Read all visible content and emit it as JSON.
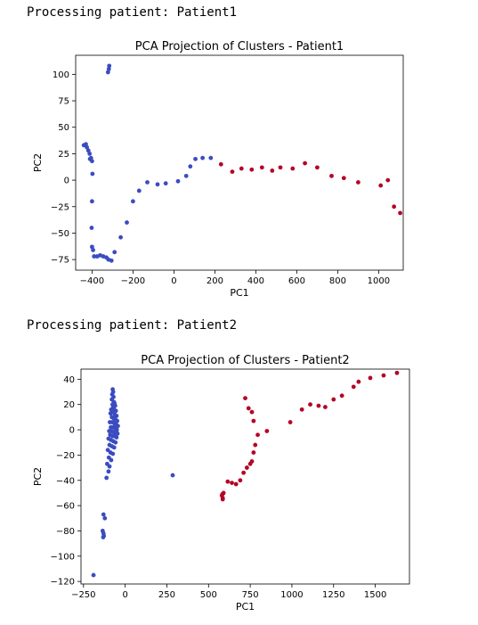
{
  "output": {
    "line1": "Processing patient: Patient1",
    "line2": "Processing patient: Patient2"
  },
  "colors": {
    "cluster0": "#3b4cc0",
    "cluster1": "#b40426"
  },
  "chart_data": [
    {
      "type": "scatter",
      "title": "PCA Projection of Clusters - Patient1",
      "xlabel": "PC1",
      "ylabel": "PC2",
      "xlim": [
        -480,
        1120
      ],
      "ylim": [
        -85,
        118
      ],
      "xticks": [
        -400,
        -200,
        0,
        200,
        400,
        600,
        800,
        1000
      ],
      "yticks": [
        100,
        75,
        50,
        25,
        0,
        -25,
        -50,
        -75
      ],
      "grid": false,
      "series": [
        {
          "cluster": 0,
          "points": [
            [
              -316,
              108
            ],
            [
              -318,
              105
            ],
            [
              -322,
              102
            ],
            [
              -440,
              33
            ],
            [
              -430,
              34
            ],
            [
              -425,
              31
            ],
            [
              -418,
              28
            ],
            [
              -412,
              25
            ],
            [
              -410,
              20
            ],
            [
              -405,
              21
            ],
            [
              -400,
              18
            ],
            [
              -398,
              6
            ],
            [
              -400,
              -20
            ],
            [
              -402,
              -45
            ],
            [
              -400,
              -63
            ],
            [
              -395,
              -66
            ],
            [
              -390,
              -72
            ],
            [
              -375,
              -72
            ],
            [
              -360,
              -71
            ],
            [
              -345,
              -72
            ],
            [
              -330,
              -73
            ],
            [
              -320,
              -75
            ],
            [
              -305,
              -76
            ],
            [
              -290,
              -68
            ],
            [
              -260,
              -54
            ],
            [
              -230,
              -40
            ],
            [
              -200,
              -20
            ],
            [
              -170,
              -10
            ],
            [
              -130,
              -2
            ],
            [
              -80,
              -4
            ],
            [
              -40,
              -3
            ],
            [
              20,
              -1
            ],
            [
              60,
              4
            ],
            [
              80,
              13
            ],
            [
              105,
              20
            ],
            [
              140,
              21
            ],
            [
              180,
              21
            ]
          ]
        },
        {
          "cluster": 1,
          "points": [
            [
              230,
              15
            ],
            [
              285,
              8
            ],
            [
              330,
              11
            ],
            [
              380,
              10
            ],
            [
              430,
              12
            ],
            [
              480,
              9
            ],
            [
              520,
              12
            ],
            [
              580,
              11
            ],
            [
              640,
              16
            ],
            [
              700,
              12
            ],
            [
              770,
              4
            ],
            [
              830,
              2
            ],
            [
              900,
              -2
            ],
            [
              1010,
              -5
            ],
            [
              1045,
              0
            ],
            [
              1075,
              -25
            ],
            [
              1105,
              -31
            ]
          ]
        }
      ]
    },
    {
      "type": "scatter",
      "title": "PCA Projection of Clusters - Patient2",
      "xlabel": "PC1",
      "ylabel": "PC2",
      "xlim": [
        -265,
        1705
      ],
      "ylim": [
        -122,
        48
      ],
      "xticks": [
        -250,
        0,
        250,
        500,
        750,
        1000,
        1250,
        1500
      ],
      "yticks": [
        40,
        20,
        0,
        -20,
        -40,
        -60,
        -80,
        -100,
        -120
      ],
      "grid": false,
      "series": [
        {
          "cluster": 0,
          "points": [
            [
              -75,
              32
            ],
            [
              -72,
              30
            ],
            [
              -78,
              28
            ],
            [
              -70,
              26
            ],
            [
              -80,
              24
            ],
            [
              -68,
              22
            ],
            [
              -76,
              20
            ],
            [
              -64,
              21
            ],
            [
              -72,
              18
            ],
            [
              -60,
              19
            ],
            [
              -84,
              16
            ],
            [
              -66,
              16
            ],
            [
              -56,
              15
            ],
            [
              -88,
              13
            ],
            [
              -74,
              14
            ],
            [
              -62,
              12
            ],
            [
              -52,
              11
            ],
            [
              -80,
              10
            ],
            [
              -68,
              9
            ],
            [
              -58,
              8
            ],
            [
              -48,
              7
            ],
            [
              -92,
              6
            ],
            [
              -78,
              6
            ],
            [
              -64,
              5
            ],
            [
              -54,
              4
            ],
            [
              -44,
              3
            ],
            [
              -86,
              2
            ],
            [
              -72,
              2
            ],
            [
              -60,
              1
            ],
            [
              -50,
              0
            ],
            [
              -96,
              -1
            ],
            [
              -82,
              -1
            ],
            [
              -68,
              -2
            ],
            [
              -56,
              -2
            ],
            [
              -46,
              -3
            ],
            [
              -90,
              -4
            ],
            [
              -76,
              -5
            ],
            [
              -64,
              -5
            ],
            [
              -52,
              -6
            ],
            [
              -100,
              -7
            ],
            [
              -86,
              -8
            ],
            [
              -72,
              -9
            ],
            [
              -58,
              -10
            ],
            [
              -94,
              -12
            ],
            [
              -80,
              -13
            ],
            [
              -66,
              -14
            ],
            [
              -104,
              -16
            ],
            [
              -88,
              -18
            ],
            [
              -74,
              -19
            ],
            [
              -98,
              -22
            ],
            [
              -84,
              -24
            ],
            [
              -108,
              -27
            ],
            [
              -94,
              -29
            ],
            [
              -100,
              -33
            ],
            [
              -112,
              -38
            ],
            [
              -130,
              -67
            ],
            [
              -122,
              -70
            ],
            [
              -135,
              -80
            ],
            [
              -130,
              -82
            ],
            [
              -128,
              -84
            ],
            [
              -132,
              -85
            ],
            [
              -190,
              -115
            ],
            [
              285,
              -36
            ]
          ]
        },
        {
          "cluster": 1,
          "points": [
            [
              580,
              -52
            ],
            [
              585,
              -54
            ],
            [
              583,
              -51
            ],
            [
              590,
              -50
            ],
            [
              585,
              -55
            ],
            [
              615,
              -41
            ],
            [
              640,
              -42
            ],
            [
              665,
              -43
            ],
            [
              690,
              -40
            ],
            [
              710,
              -34
            ],
            [
              730,
              -30
            ],
            [
              750,
              -27
            ],
            [
              760,
              -25
            ],
            [
              770,
              -18
            ],
            [
              780,
              -12
            ],
            [
              795,
              -4
            ],
            [
              850,
              -1
            ],
            [
              990,
              6
            ],
            [
              1060,
              16
            ],
            [
              1110,
              20
            ],
            [
              1160,
              19
            ],
            [
              1200,
              18
            ],
            [
              1250,
              24
            ],
            [
              1300,
              27
            ],
            [
              1370,
              34
            ],
            [
              1400,
              38
            ],
            [
              1470,
              41
            ],
            [
              1550,
              43
            ],
            [
              1630,
              45
            ],
            [
              720,
              25
            ],
            [
              740,
              17
            ],
            [
              760,
              14
            ],
            [
              770,
              7
            ]
          ]
        }
      ]
    }
  ]
}
